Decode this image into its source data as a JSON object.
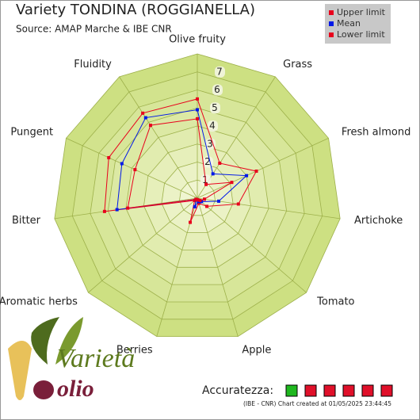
{
  "chart_data": {
    "type": "radar",
    "title": "Variety TONDINA (ROGGIANELLA)",
    "subtitle": "Source: AMAP Marche & IBE CNR",
    "categories": [
      "Olive fruity",
      "Grass",
      "Fresh almond",
      "Artichoke",
      "Tomato",
      "Apple",
      "Berries",
      "Aromatic herbs",
      "Bitter",
      "Pungent",
      "Fluidity"
    ],
    "series": [
      {
        "name": "Upper limit",
        "color": "#e8001c",
        "values": [
          5.5,
          2.3,
          3.6,
          2.3,
          0.7,
          0.3,
          1.4,
          0.2,
          5.2,
          5.4,
          5.6
        ]
      },
      {
        "name": "Mean",
        "color": "#0018e8",
        "values": [
          4.9,
          1.6,
          3.0,
          1.2,
          0.3,
          0.2,
          0.5,
          0.1,
          4.5,
          4.6,
          5.3
        ]
      },
      {
        "name": "Lower limit",
        "color": "#e8001c",
        "values": [
          4.4,
          0.9,
          2.1,
          0.4,
          0.2,
          0.1,
          0.1,
          0.1,
          3.9,
          3.8,
          4.8
        ]
      }
    ],
    "ylim": [
      0,
      8
    ],
    "yticks": [
      1,
      2,
      3,
      4,
      5,
      6,
      7
    ]
  },
  "footer": {
    "accuracy_label": "Accuratezza:",
    "credit": "(IBE - CNR) Chart created at 01/05/2025 23:44:45",
    "logo_top": "Varietà",
    "logo_bottom": "olio"
  }
}
